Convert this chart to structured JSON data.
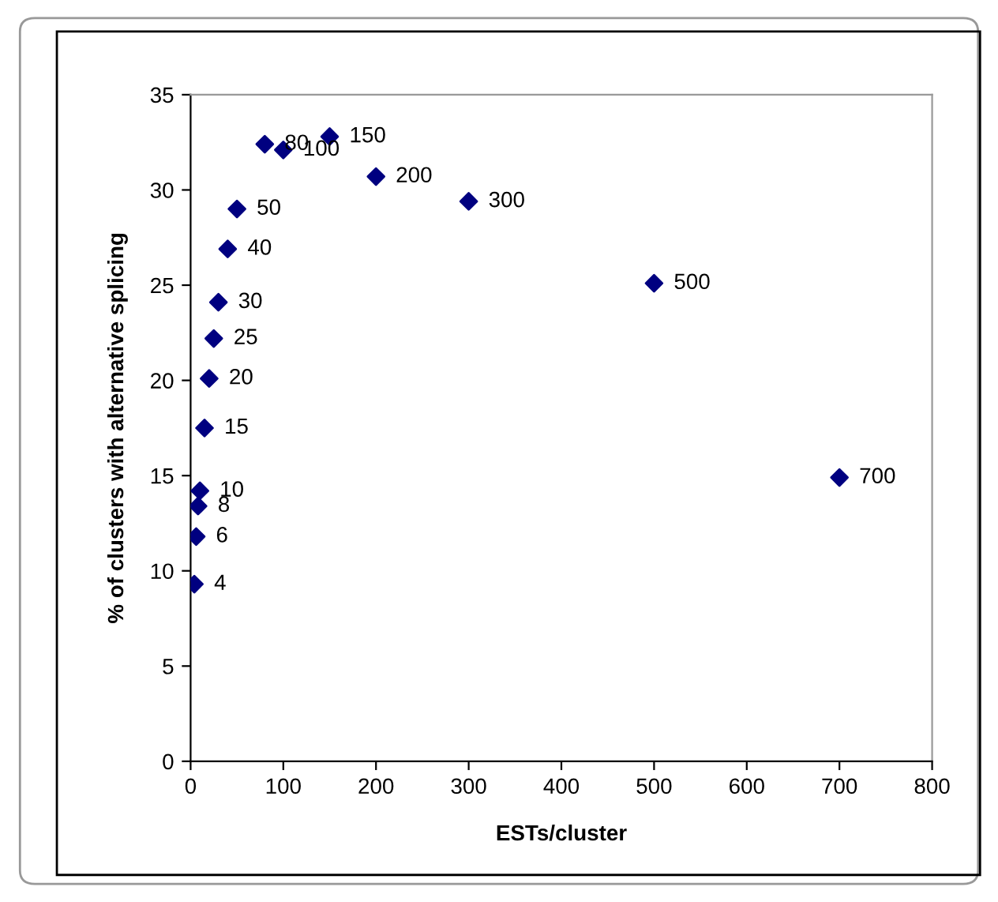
{
  "chart_data": {
    "type": "scatter",
    "xlabel": "ESTs/cluster",
    "ylabel": "% of clusters with alternative splicing",
    "x": [
      4,
      6,
      8,
      10,
      15,
      20,
      25,
      30,
      40,
      50,
      80,
      100,
      150,
      200,
      300,
      500,
      700
    ],
    "series": [
      {
        "color": "#000080",
        "values": [
          9.3,
          11.8,
          13.4,
          14.2,
          17.5,
          20.1,
          22.2,
          24.1,
          26.9,
          29.0,
          32.4,
          32.1,
          32.8,
          30.7,
          29.4,
          25.1,
          14.9
        ]
      }
    ],
    "annotations": [
      {
        "text": "4",
        "x": 4,
        "y": 9.3
      },
      {
        "text": "6",
        "x": 6,
        "y": 11.8
      },
      {
        "text": "8",
        "x": 8,
        "y": 13.4
      },
      {
        "text": "10",
        "x": 10,
        "y": 14.2
      },
      {
        "text": "15",
        "x": 15,
        "y": 17.5
      },
      {
        "text": "20",
        "x": 20,
        "y": 20.1
      },
      {
        "text": "25",
        "x": 25,
        "y": 22.2
      },
      {
        "text": "30",
        "x": 30,
        "y": 24.1
      },
      {
        "text": "40",
        "x": 40,
        "y": 26.9
      },
      {
        "text": "50",
        "x": 50,
        "y": 29.0
      },
      {
        "text": "80",
        "x": 80,
        "y": 32.4
      },
      {
        "text": "100",
        "x": 100,
        "y": 32.1
      },
      {
        "text": "150",
        "x": 150,
        "y": 32.8
      },
      {
        "text": "200",
        "x": 200,
        "y": 30.7
      },
      {
        "text": "300",
        "x": 300,
        "y": 29.4
      },
      {
        "text": "500",
        "x": 500,
        "y": 25.1
      },
      {
        "text": "700",
        "x": 700,
        "y": 14.9
      }
    ],
    "marker": "diamond",
    "xlim": [
      0,
      800
    ],
    "xticks": [
      0,
      100,
      200,
      300,
      400,
      500,
      600,
      700,
      800
    ],
    "ylim": [
      0,
      35
    ],
    "yticks": [
      0,
      5,
      10,
      15,
      20,
      25,
      30,
      35
    ],
    "grid": false,
    "legend": false
  }
}
